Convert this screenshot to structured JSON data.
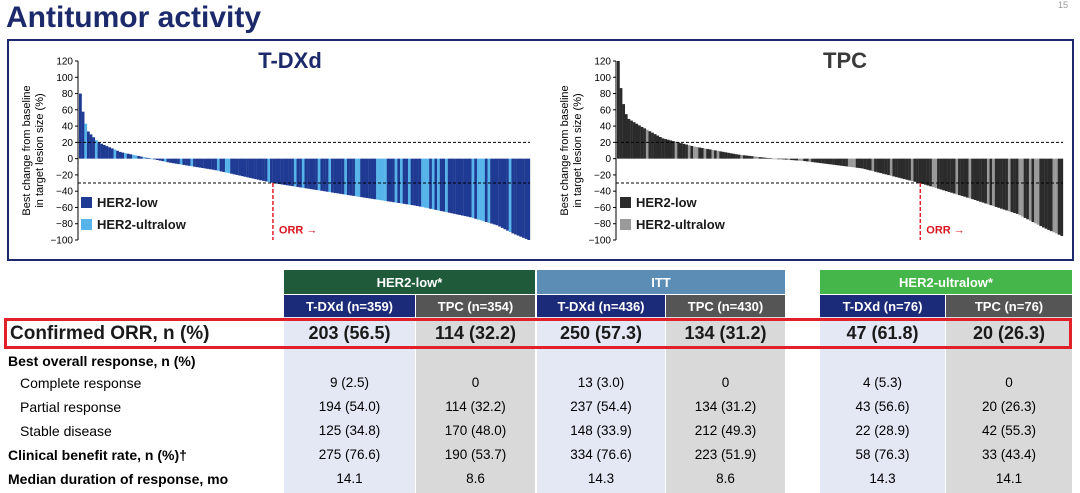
{
  "slide": {
    "title": "Antitumor activity",
    "page_number": "15"
  },
  "colors": {
    "navy": "#1c2a6b",
    "her2_low": "#1f3a93",
    "her2_ultralow": "#56b4ea",
    "tpc_dark": "#2b2b2b",
    "tpc_light": "#9a9a9a",
    "orr_red": "#e2202a",
    "hdr_low": "#1f5b3b",
    "hdr_itt": "#5b8db5",
    "hdr_ultra": "#45b649",
    "sub_tdxd": "#1c2a7a",
    "sub_tpc": "#555555",
    "col_blue_bg": "#e4e8f4",
    "col_gray_bg": "#d9d9d9"
  },
  "chart_data": [
    {
      "type": "bar",
      "title": "T-DXd",
      "ylabel": "Best change from baseline in target lesion size (%)",
      "ylim": [
        -100,
        120
      ],
      "yticks": [
        "120",
        "100",
        "80",
        "60",
        "40",
        "20",
        "0",
        "−20",
        "−40",
        "−60",
        "−80",
        "−100"
      ],
      "reference_lines": [
        20,
        -30
      ],
      "orr_marker_label": "ORR →",
      "orr_marker_fraction": 0.43,
      "legend": [
        "HER2-low",
        "HER2-ultralow"
      ],
      "n_bars": 170,
      "value_curve": [
        [
          0,
          80
        ],
        [
          0.005,
          60
        ],
        [
          0.015,
          35
        ],
        [
          0.04,
          20
        ],
        [
          0.09,
          8
        ],
        [
          0.14,
          2
        ],
        [
          0.2,
          -5
        ],
        [
          0.3,
          -14
        ],
        [
          0.43,
          -30
        ],
        [
          0.6,
          -45
        ],
        [
          0.75,
          -58
        ],
        [
          0.87,
          -72
        ],
        [
          0.93,
          -82
        ],
        [
          0.965,
          -92
        ],
        [
          1,
          -100
        ]
      ]
    },
    {
      "type": "bar",
      "title": "TPC",
      "ylabel": "Best change from baseline in target lesion size (%)",
      "ylim": [
        -100,
        120
      ],
      "yticks": [
        "120",
        "100",
        "80",
        "60",
        "40",
        "20",
        "0",
        "−20",
        "−40",
        "−60",
        "−80",
        "−100"
      ],
      "reference_lines": [
        20,
        -30
      ],
      "orr_marker_label": "ORR →",
      "orr_marker_fraction": 0.68,
      "legend": [
        "HER2-low",
        "HER2-ultralow"
      ],
      "n_bars": 170,
      "value_curve": [
        [
          0,
          120
        ],
        [
          0.008,
          75
        ],
        [
          0.02,
          50
        ],
        [
          0.05,
          40
        ],
        [
          0.1,
          25
        ],
        [
          0.17,
          15
        ],
        [
          0.27,
          5
        ],
        [
          0.35,
          0
        ],
        [
          0.42,
          -3
        ],
        [
          0.55,
          -12
        ],
        [
          0.68,
          -30
        ],
        [
          0.8,
          -50
        ],
        [
          0.9,
          -68
        ],
        [
          0.96,
          -85
        ],
        [
          1,
          -95
        ]
      ]
    }
  ],
  "table": {
    "group_headers": [
      "HER2-low*",
      "ITT",
      "HER2-ultralow*"
    ],
    "sub_headers": [
      "T-DXd (n=359)",
      "TPC (n=354)",
      "T-DXd (n=436)",
      "TPC (n=430)",
      "T-DXd (n=76)",
      "TPC (n=76)"
    ],
    "orr_label": "Confirmed ORR, n (%)",
    "orr_values": [
      "203 (56.5)",
      "114 (32.2)",
      "250 (57.3)",
      "134 (31.2)",
      "47 (61.8)",
      "20 (26.3)"
    ],
    "rows": [
      {
        "label": "Best overall response, n (%)",
        "style": "bold",
        "values": [
          "",
          "",
          "",
          "",
          "",
          ""
        ]
      },
      {
        "label": "Complete response",
        "style": "indent",
        "values": [
          "9 (2.5)",
          "0",
          "13 (3.0)",
          "0",
          "4 (5.3)",
          "0"
        ]
      },
      {
        "label": "Partial response",
        "style": "indent",
        "values": [
          "194 (54.0)",
          "114 (32.2)",
          "237 (54.4)",
          "134 (31.2)",
          "43 (56.6)",
          "20 (26.3)"
        ]
      },
      {
        "label": "Stable disease",
        "style": "indent",
        "values": [
          "125 (34.8)",
          "170 (48.0)",
          "148 (33.9)",
          "212 (49.3)",
          "22 (28.9)",
          "42 (55.3)"
        ]
      },
      {
        "label": "Clinical benefit rate, n (%)†",
        "style": "bold",
        "values": [
          "275 (76.6)",
          "190 (53.7)",
          "334 (76.6)",
          "223 (51.9)",
          "58 (76.3)",
          "33 (43.4)"
        ]
      },
      {
        "label": "Median duration of response, mo",
        "style": "bold",
        "values": [
          "14.1",
          "8.6",
          "14.3",
          "8.6",
          "14.3",
          "14.1"
        ]
      }
    ]
  }
}
